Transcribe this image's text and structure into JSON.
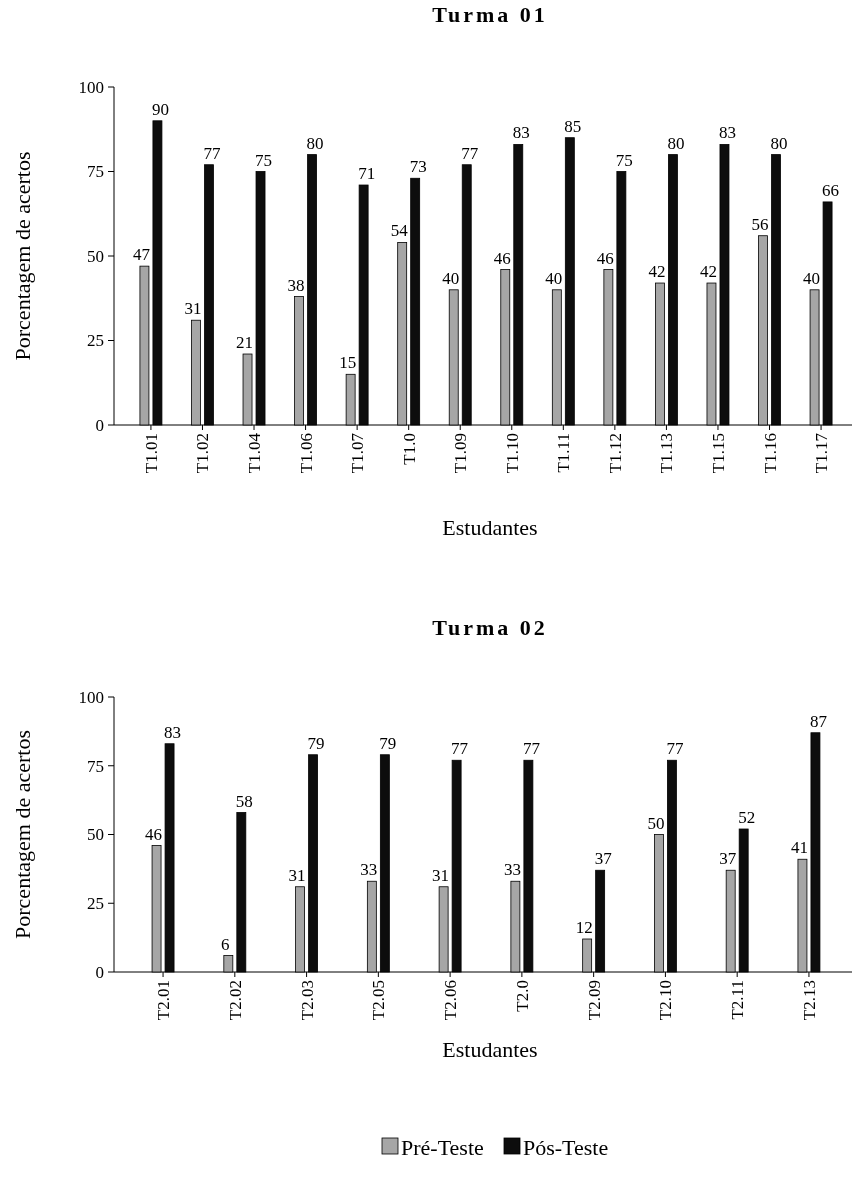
{
  "chart_data": [
    {
      "type": "bar",
      "title": "Turma 01",
      "xlabel": "Estudantes",
      "ylabel": "Porcentagem de acertos",
      "categories": [
        "T1.01",
        "T1.02",
        "T1.04",
        "T1.06",
        "T1.07",
        "T1.0",
        "T1.09",
        "T1.10",
        "T1.11",
        "T1.12",
        "T1.13",
        "T1.15",
        "T1.16",
        "T1.17"
      ],
      "series": [
        {
          "color": "#a6a6a6",
          "values": [
            47,
            31,
            21,
            38,
            15,
            54,
            40,
            46,
            40,
            46,
            42,
            42,
            56,
            40
          ]
        },
        {
          "color": "#0d0d0d",
          "values": [
            90,
            77,
            75,
            80,
            71,
            73,
            77,
            83,
            85,
            75,
            80,
            83,
            80,
            66
          ]
        }
      ],
      "ylim": [
        0,
        100
      ],
      "yticks": [
        0,
        25,
        50,
        75,
        100
      ],
      "data_labels": true,
      "grid": false,
      "legend": false
    },
    {
      "type": "bar",
      "title": "Turma 02",
      "xlabel": "Estudantes",
      "ylabel": "Porcentagem de acertos",
      "categories": [
        "T2.01",
        "T2.02",
        "T2.03",
        "T2.05",
        "T2.06",
        "T2.0",
        "T2.09",
        "T2.10",
        "T2.11",
        "T2.13"
      ],
      "series": [
        {
          "name": "Pré-Teste",
          "color": "#a6a6a6",
          "values": [
            46,
            6,
            31,
            33,
            31,
            33,
            12,
            50,
            37,
            41
          ]
        },
        {
          "name": "Pós-Teste",
          "color": "#0d0d0d",
          "values": [
            83,
            58,
            79,
            79,
            77,
            77,
            37,
            77,
            52,
            87
          ]
        }
      ],
      "ylim": [
        0,
        100
      ],
      "yticks": [
        0,
        25,
        50,
        75,
        100
      ],
      "data_labels": true,
      "grid": false,
      "legend": "bottom"
    }
  ]
}
